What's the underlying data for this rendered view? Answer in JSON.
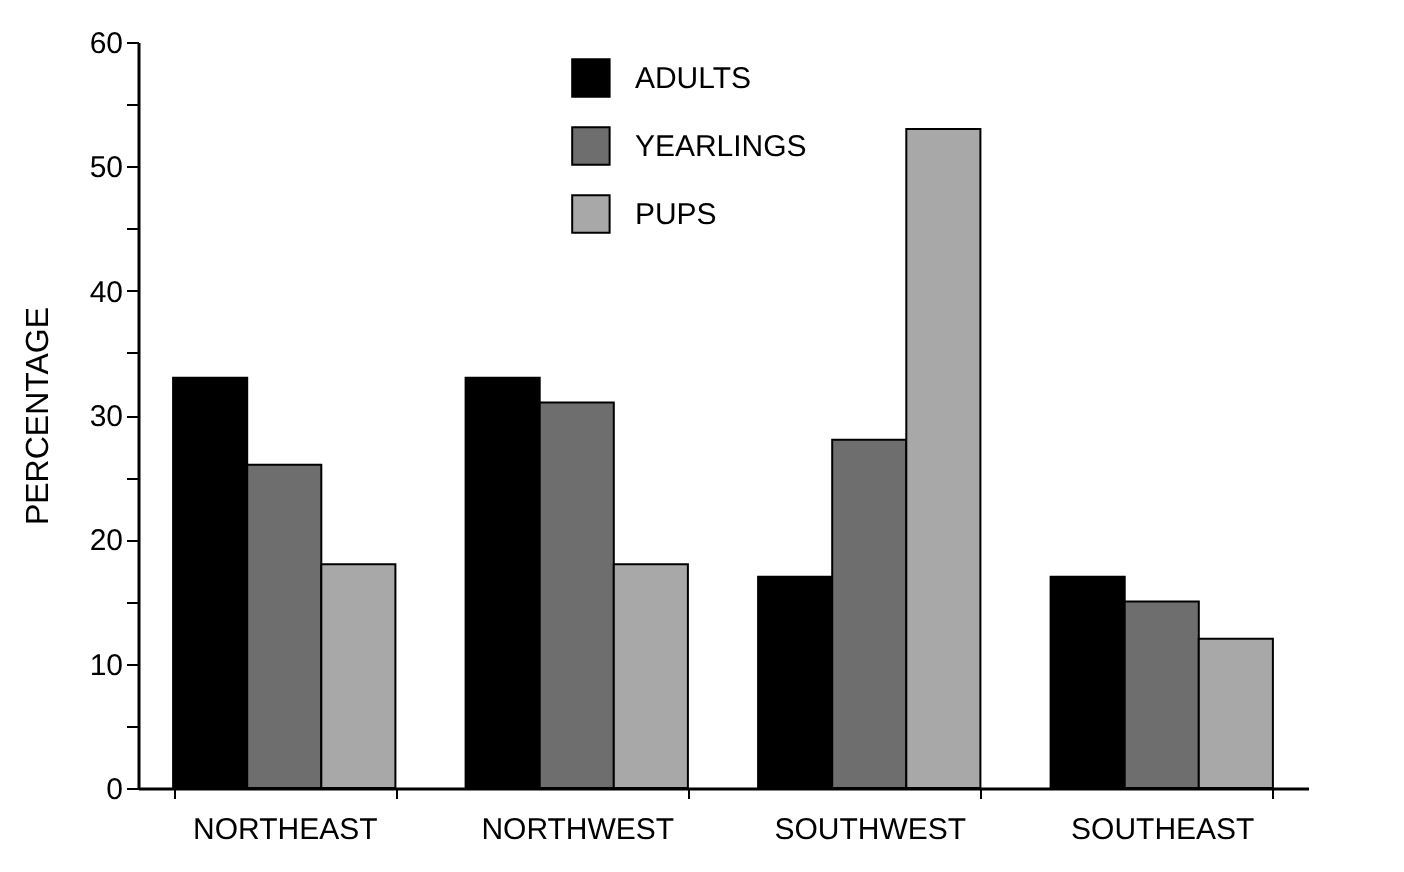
{
  "chart_data": {
    "type": "bar",
    "ylabel": "PERCENTAGE",
    "categories": [
      "NORTHEAST",
      "NORTHWEST",
      "SOUTHWEST",
      "SOUTHEAST"
    ],
    "series": [
      {
        "name": "ADULTS",
        "color": "#000000",
        "values": [
          33,
          33,
          17,
          17
        ]
      },
      {
        "name": "YEARLINGS",
        "color": "#6e6e6e",
        "values": [
          26,
          31,
          28,
          15
        ]
      },
      {
        "name": "PUPS",
        "color": "#a8a8a8",
        "values": [
          18,
          18,
          53,
          12
        ]
      }
    ],
    "ylim": [
      0,
      60
    ],
    "yticks": [
      0,
      {
        "value": 5,
        "label": null
      },
      10,
      {
        "value": 15,
        "label": null
      },
      20,
      {
        "value": 25,
        "label": null
      },
      30,
      {
        "value": 35,
        "label": null
      },
      40,
      {
        "value": 45,
        "label": null
      },
      50,
      {
        "value": 55,
        "label": null
      },
      60
    ],
    "grid": false,
    "legend": "top"
  }
}
